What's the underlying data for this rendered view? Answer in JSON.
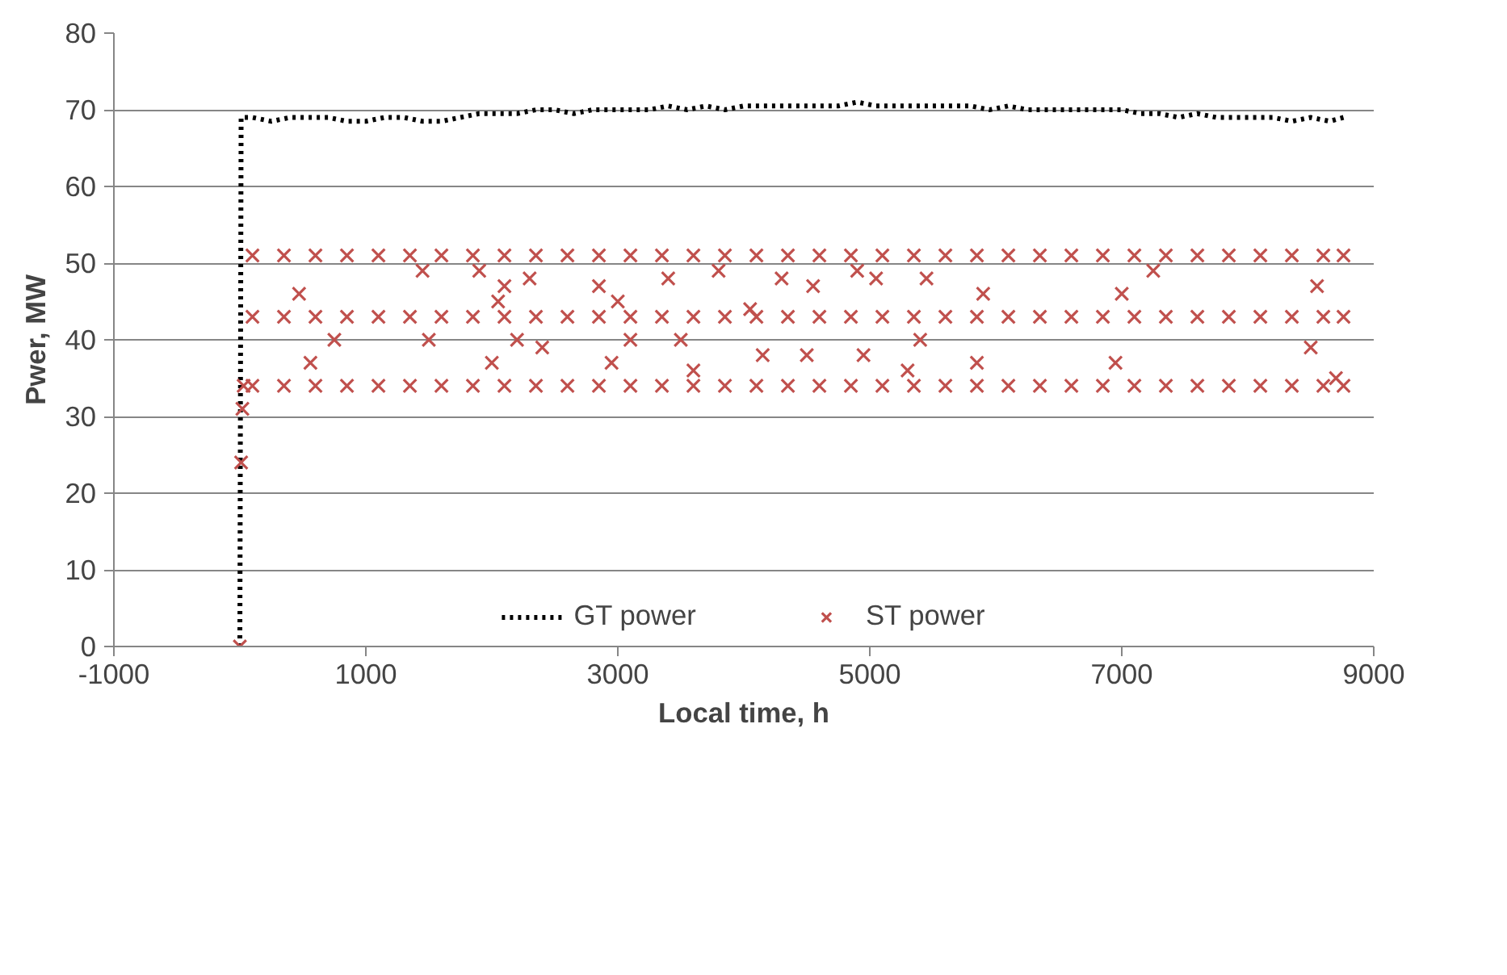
{
  "chart_data": {
    "type": "scatter",
    "xlabel": "Local time, h",
    "ylabel": "Pwer, MW",
    "xlim": [
      -1000,
      9000
    ],
    "xticks": [
      -1000,
      1000,
      3000,
      5000,
      7000,
      9000
    ],
    "ylim": [
      0,
      80
    ],
    "yticks": [
      0,
      10,
      20,
      30,
      40,
      50,
      60,
      70,
      80
    ],
    "grid": "y",
    "legend": "bottom",
    "series": [
      {
        "name": "GT power",
        "type": "line",
        "color": "#000000",
        "line_style": "dotted",
        "marker": "none",
        "x": [
          0,
          10,
          100,
          250,
          400,
          550,
          700,
          850,
          1000,
          1150,
          1300,
          1450,
          1600,
          1750,
          1900,
          2050,
          2200,
          2350,
          2500,
          2650,
          2800,
          2950,
          3100,
          3250,
          3400,
          3550,
          3700,
          3850,
          4000,
          4150,
          4300,
          4450,
          4600,
          4750,
          4900,
          5050,
          5200,
          5350,
          5500,
          5650,
          5800,
          5950,
          6100,
          6250,
          6400,
          6550,
          6700,
          6850,
          7000,
          7150,
          7300,
          7450,
          7600,
          7750,
          7900,
          8050,
          8200,
          8350,
          8500,
          8650,
          8760
        ],
        "values": [
          0,
          69,
          69,
          68.5,
          69,
          69,
          69,
          68.5,
          68.5,
          69,
          69,
          68.5,
          68.5,
          69,
          69.5,
          69.5,
          69.5,
          70,
          70,
          69.5,
          70,
          70,
          70,
          70,
          70.5,
          70,
          70.5,
          70,
          70.5,
          70.5,
          70.5,
          70.5,
          70.5,
          70.5,
          71,
          70.5,
          70.5,
          70.5,
          70.5,
          70.5,
          70.5,
          70,
          70.5,
          70,
          70,
          70,
          70,
          70,
          70,
          69.5,
          69.5,
          69,
          69.5,
          69,
          69,
          69,
          69,
          68.5,
          69,
          68.5,
          69
        ]
      },
      {
        "name": "ST power",
        "type": "scatter",
        "color": "#c0504d",
        "marker": "cross",
        "x": [
          0,
          10,
          20,
          30,
          100,
          350,
          600,
          850,
          1100,
          1350,
          1600,
          1850,
          2100,
          2350,
          2600,
          2850,
          3100,
          3350,
          3600,
          3850,
          4100,
          4350,
          4600,
          4850,
          5100,
          5350,
          5600,
          5850,
          6100,
          6350,
          6600,
          6850,
          7100,
          7350,
          7600,
          7850,
          8100,
          8350,
          8600,
          8760,
          100,
          350,
          600,
          850,
          1100,
          1350,
          1600,
          1850,
          2100,
          2350,
          2600,
          2850,
          3100,
          3350,
          3600,
          3850,
          4100,
          4350,
          4600,
          4850,
          5100,
          5350,
          5600,
          5850,
          6100,
          6350,
          6600,
          6850,
          7100,
          7350,
          7600,
          7850,
          8100,
          8350,
          8600,
          8760,
          100,
          350,
          600,
          850,
          1100,
          1350,
          1600,
          1850,
          2100,
          2350,
          2600,
          2850,
          3100,
          3350,
          3600,
          3850,
          4100,
          4350,
          4600,
          4850,
          5100,
          5350,
          5600,
          5850,
          6100,
          6350,
          6600,
          6850,
          7100,
          7350,
          7600,
          7850,
          8100,
          8350,
          8600,
          8760,
          470,
          560,
          750,
          1450,
          1500,
          1900,
          2000,
          2050,
          2100,
          2200,
          2300,
          2400,
          2850,
          2950,
          3000,
          3100,
          3400,
          3500,
          3600,
          3800,
          4050,
          4150,
          4300,
          4500,
          4550,
          4900,
          4950,
          5050,
          5300,
          5400,
          5450,
          5850,
          5900,
          6950,
          7000,
          7250,
          8500,
          8550,
          8700
        ],
        "values": [
          0,
          24,
          31,
          34,
          51,
          51,
          51,
          51,
          51,
          51,
          51,
          51,
          51,
          51,
          51,
          51,
          51,
          51,
          51,
          51,
          51,
          51,
          51,
          51,
          51,
          51,
          51,
          51,
          51,
          51,
          51,
          51,
          51,
          51,
          51,
          51,
          51,
          51,
          51,
          51,
          43,
          43,
          43,
          43,
          43,
          43,
          43,
          43,
          43,
          43,
          43,
          43,
          43,
          43,
          43,
          43,
          43,
          43,
          43,
          43,
          43,
          43,
          43,
          43,
          43,
          43,
          43,
          43,
          43,
          43,
          43,
          43,
          43,
          43,
          43,
          43,
          34,
          34,
          34,
          34,
          34,
          34,
          34,
          34,
          34,
          34,
          34,
          34,
          34,
          34,
          34,
          34,
          34,
          34,
          34,
          34,
          34,
          34,
          34,
          34,
          34,
          34,
          34,
          34,
          34,
          34,
          34,
          34,
          34,
          34,
          34,
          34,
          46,
          37,
          40,
          49,
          40,
          49,
          37,
          45,
          47,
          40,
          48,
          39,
          47,
          37,
          45,
          40,
          48,
          40,
          36,
          49,
          44,
          38,
          48,
          38,
          47,
          49,
          38,
          48,
          36,
          40,
          48,
          37,
          46,
          37,
          46,
          49,
          39,
          47,
          35
        ]
      }
    ]
  }
}
